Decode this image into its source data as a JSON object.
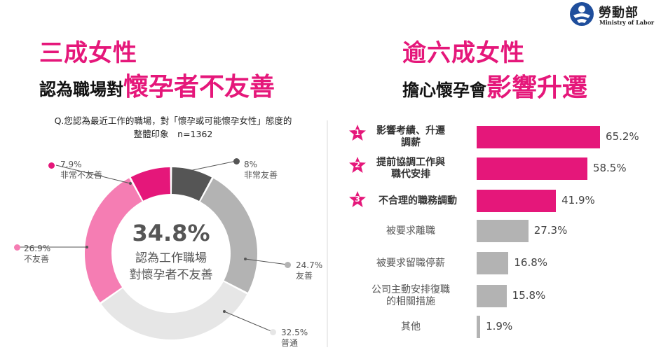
{
  "logo": {
    "name_zh": "勞動部",
    "name_en": "Ministry of Labor"
  },
  "left_panel": {
    "title_line1": "三成女性",
    "title_line2_prefix": "認為職場對",
    "title_line2_emphasis": "懷孕者不友善",
    "question_line1": "Q.您認為最近工作的職場，對「懷孕或可能懷孕女性」態度的",
    "question_line2": "整體印象　n=1362",
    "center_value": "34.8%",
    "center_text_line1": "認為工作職場",
    "center_text_line2": "對懷孕者不友善"
  },
  "right_panel": {
    "title_line1": "逾六成女性",
    "title_line2_prefix": "擔心懷孕會",
    "title_line2_emphasis": "影響升遷"
  },
  "colors": {
    "accent": "#e5177a",
    "light_pink": "#f57db3",
    "dark_gray": "#555555",
    "mid_gray": "#b3b3b3",
    "light_gray": "#e6e6e6"
  },
  "chart_data": [
    {
      "type": "pie",
      "title": "",
      "series": [
        {
          "name": "非常友善",
          "value": 8,
          "display": "8%",
          "color": "#555555"
        },
        {
          "name": "友善",
          "value": 24.7,
          "display": "24.7%",
          "color": "#b3b3b3"
        },
        {
          "name": "普通",
          "value": 32.5,
          "display": "32.5%",
          "color": "#e6e6e6"
        },
        {
          "name": "不友善",
          "value": 26.9,
          "display": "26.9%",
          "color": "#f57db3"
        },
        {
          "name": "非常不友善",
          "value": 7.9,
          "display": "7.9%",
          "color": "#e5177a"
        }
      ]
    },
    {
      "type": "bar",
      "orientation": "horizontal",
      "title": "",
      "categories": [
        "影響考績、升遷調薪",
        "提前協調工作與職代安排",
        "不合理的職務調動",
        "被要求離職",
        "被要求留職停薪",
        "公司主動安排復職的相關措施",
        "其他"
      ],
      "category_lines": [
        [
          "影響考績、升遷",
          "調薪"
        ],
        [
          "提前協調工作與",
          "職代安排"
        ],
        [
          "不合理的職務調動"
        ],
        [
          "被要求離職"
        ],
        [
          "被要求留職停薪"
        ],
        [
          "公司主動安排復職",
          "的相關措施"
        ],
        [
          "其他"
        ]
      ],
      "values": [
        65.2,
        58.5,
        41.9,
        27.3,
        16.8,
        15.8,
        1.9
      ],
      "value_labels": [
        "65.2%",
        "58.5%",
        "41.9%",
        "27.3%",
        "16.8%",
        "15.8%",
        "1.9%"
      ],
      "ranks": [
        "1",
        "2",
        "3"
      ],
      "highlight_top": 3,
      "xlim": [
        0,
        100
      ]
    }
  ]
}
